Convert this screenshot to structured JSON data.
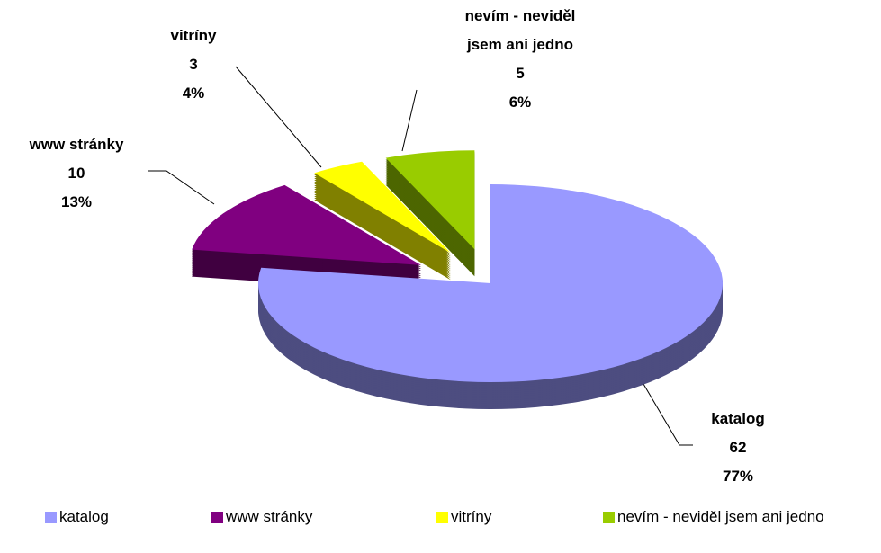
{
  "chart_data": {
    "type": "pie",
    "categories": [
      "katalog",
      "www stránky",
      "vitríny",
      "nevím - neviděl jsem ani jedno"
    ],
    "values": [
      62,
      10,
      3,
      5
    ],
    "percent_labels": [
      "77%",
      "13%",
      "4%",
      "6%"
    ],
    "colors": [
      "#9999ff",
      "#800080",
      "#ffff00",
      "#99cc00"
    ],
    "legend": "bottom"
  }
}
